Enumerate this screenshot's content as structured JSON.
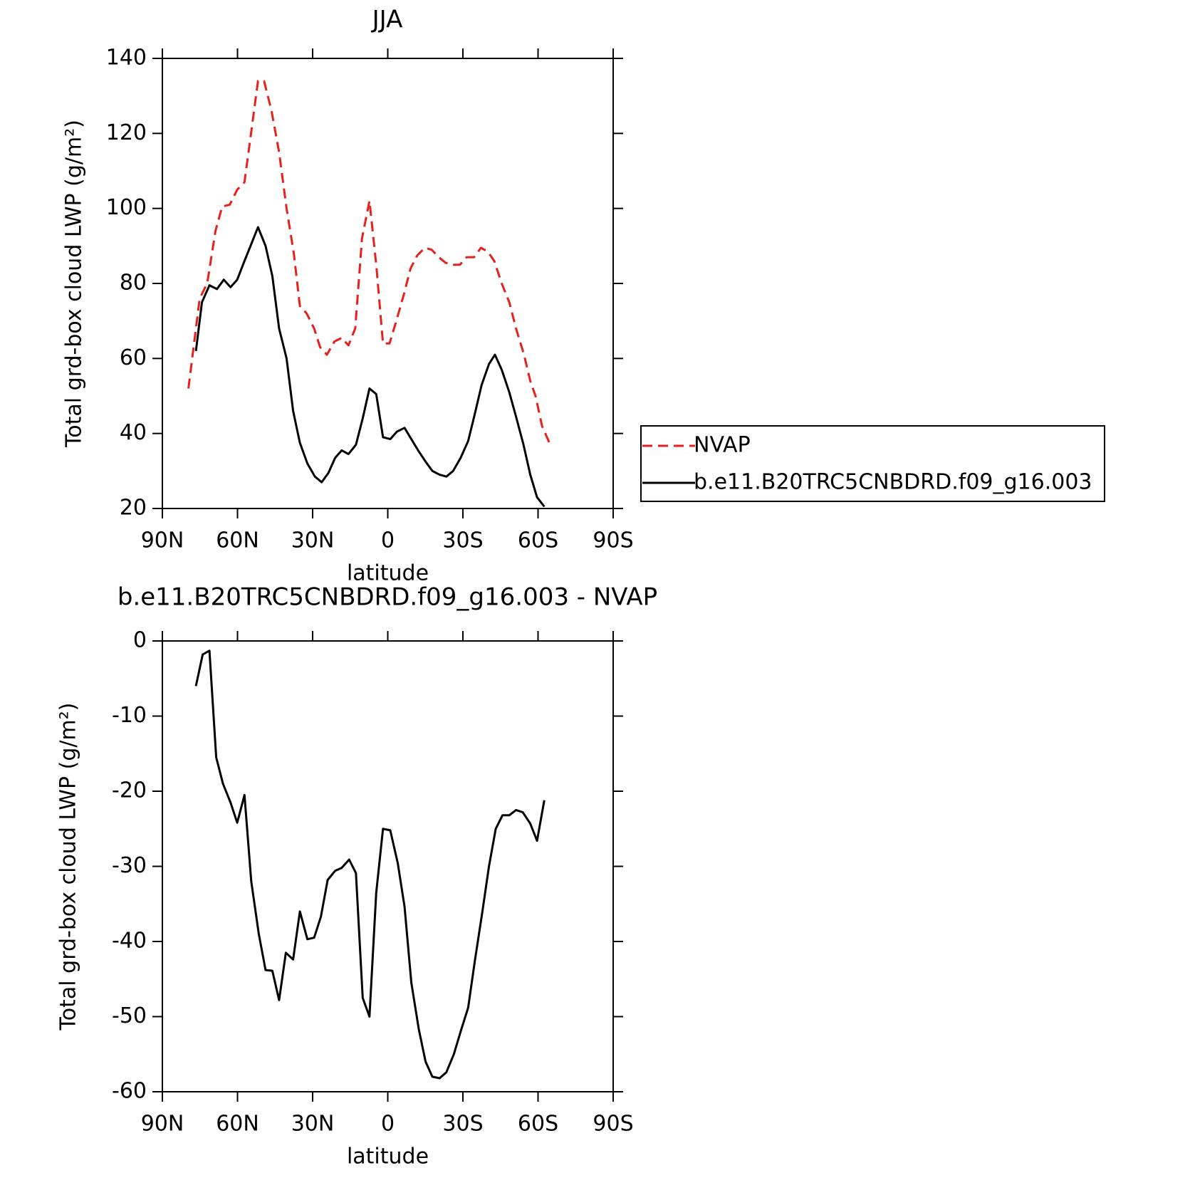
{
  "chart_data": [
    {
      "type": "line",
      "title": "JJA",
      "x_label": "latitude",
      "y_label": "Total grd-box cloud LWP (g/m²)",
      "xlim": [
        90,
        -90
      ],
      "ylim": [
        20,
        140
      ],
      "xticks": [
        {
          "value": 90,
          "label": "90N"
        },
        {
          "value": 60,
          "label": "60N"
        },
        {
          "value": 30,
          "label": "30N"
        },
        0,
        {
          "value": -30,
          "label": "30S"
        },
        {
          "value": -60,
          "label": "60S"
        },
        {
          "value": -90,
          "label": "90S"
        }
      ],
      "yticks": [
        20,
        40,
        60,
        80,
        100,
        120,
        140
      ],
      "legend": "outside-right",
      "series": [
        {
          "name": "NVAP",
          "color": "#e8201c",
          "line_style": "dashed",
          "x": [
            79.6,
            76.6,
            75.1,
            72.1,
            68.8,
            66.1,
            63.1,
            60.1,
            57.2,
            54.2,
            51.8,
            49.4,
            46.4,
            43.4,
            40.4,
            37.5,
            35.1,
            32.4,
            29.4,
            27.0,
            24.3,
            21.3,
            18.4,
            15.7,
            13.0,
            10.3,
            7.3,
            4.6,
            1.9,
            -0.7,
            -3.4,
            -6.4,
            -9.1,
            -11.8,
            -14.8,
            -17.5,
            -20.4,
            -23.1,
            -26.1,
            -28.8,
            -31.5,
            -34.5,
            -37.2,
            -39.9,
            -42.5,
            -45.5,
            -48.5,
            -51.2,
            -54.4,
            -56.9,
            -59.0,
            -61.6,
            -65.2
          ],
          "values": [
            52,
            68,
            76,
            80,
            94,
            100.5,
            101,
            105,
            107,
            122,
            134,
            134,
            126,
            115,
            100,
            88,
            74,
            72,
            68,
            63,
            61,
            64.5,
            65.5,
            63.5,
            68,
            92,
            102,
            85,
            64,
            64,
            70,
            77,
            84,
            87.5,
            89.5,
            89,
            87,
            85.5,
            85,
            85,
            87,
            87,
            89.5,
            88.5,
            86,
            80,
            75,
            68,
            61,
            54,
            50,
            42,
            36.5
          ]
        },
        {
          "name": "b.e11.B20TRC5CNBDRD.f09_g16.003",
          "color": "#000000",
          "line_style": "solid",
          "x": [
            76.6,
            74.2,
            71.2,
            68.2,
            65.5,
            62.8,
            60.1,
            57.2,
            54.2,
            51.8,
            48.8,
            46.1,
            43.4,
            40.4,
            37.8,
            35.1,
            32.1,
            29.1,
            26.4,
            23.7,
            21.0,
            18.4,
            15.7,
            12.7,
            10.0,
            7.3,
            4.6,
            1.9,
            -1.0,
            -3.7,
            -6.7,
            -9.4,
            -12.1,
            -15.1,
            -17.8,
            -20.7,
            -23.4,
            -26.1,
            -29.1,
            -32.1,
            -34.5,
            -37.5,
            -40.4,
            -42.8,
            -45.5,
            -48.5,
            -51.2,
            -54.2,
            -56.9,
            -59.6,
            -62.5
          ],
          "values": [
            62,
            75,
            79.5,
            78.5,
            81,
            79,
            81,
            86,
            91,
            95,
            90,
            82,
            68,
            60,
            46,
            37.5,
            32,
            28.5,
            27,
            29.5,
            33.5,
            35.5,
            34.5,
            37,
            44,
            52,
            50.5,
            39,
            38.5,
            40.5,
            41.5,
            38.5,
            35.5,
            32.5,
            30,
            29,
            28.5,
            30,
            33.5,
            38,
            44.5,
            53,
            58.5,
            61,
            57,
            51,
            44.5,
            37,
            29,
            23,
            20.5
          ]
        }
      ]
    },
    {
      "type": "line",
      "title": "b.e11.B20TRC5CNBDRD.f09_g16.003 - NVAP",
      "x_label": "latitude",
      "y_label": "Total grd-box cloud LWP (g/m²)",
      "xlim": [
        90,
        -90
      ],
      "ylim": [
        -60,
        0
      ],
      "xticks": [
        {
          "value": 90,
          "label": "90N"
        },
        {
          "value": 60,
          "label": "60N"
        },
        {
          "value": 30,
          "label": "30N"
        },
        0,
        {
          "value": -30,
          "label": "30S"
        },
        {
          "value": -60,
          "label": "60S"
        },
        {
          "value": -90,
          "label": "90S"
        }
      ],
      "yticks": [
        -60,
        -50,
        -40,
        -30,
        -20,
        -10,
        0
      ],
      "series": [
        {
          "color": "#000000",
          "line_style": "solid",
          "x": [
            76.6,
            73.9,
            71.2,
            68.5,
            65.8,
            62.8,
            60.1,
            57.2,
            54.5,
            51.5,
            48.8,
            46.1,
            43.4,
            40.7,
            37.8,
            35.1,
            32.1,
            29.4,
            26.7,
            24.0,
            21.0,
            18.4,
            15.4,
            12.7,
            10.0,
            7.3,
            4.6,
            1.9,
            -1.0,
            -4.0,
            -6.7,
            -9.4,
            -12.4,
            -15.1,
            -17.8,
            -20.7,
            -23.4,
            -26.4,
            -29.1,
            -32.1,
            -34.8,
            -37.8,
            -40.4,
            -43.1,
            -45.8,
            -48.5,
            -51.2,
            -53.9,
            -56.9,
            -59.6,
            -62.5
          ],
          "values": [
            -6,
            -1.8,
            -1.3,
            -15.5,
            -19,
            -21.5,
            -24.2,
            -20.5,
            -32,
            -39,
            -43.8,
            -43.9,
            -47.8,
            -41.5,
            -42.4,
            -36,
            -39.7,
            -39.5,
            -36.7,
            -31.8,
            -30.6,
            -30.2,
            -29.1,
            -30.9,
            -47.5,
            -50,
            -33.5,
            -25,
            -25.2,
            -29.6,
            -35.4,
            -45.5,
            -51.7,
            -56,
            -58,
            -58.2,
            -57.4,
            -55,
            -52,
            -48.8,
            -42.5,
            -36,
            -30,
            -25,
            -23.2,
            -23.2,
            -22.5,
            -22.8,
            -24.3,
            -26.6,
            -21.2
          ]
        }
      ]
    }
  ]
}
